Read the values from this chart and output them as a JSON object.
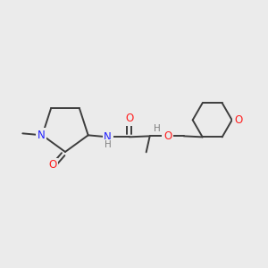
{
  "bg_color": "#ebebeb",
  "bond_color": "#3d3d3d",
  "atom_colors": {
    "N": "#2020ff",
    "O": "#ff2020",
    "H": "#808080"
  },
  "figsize": [
    3.0,
    3.0
  ],
  "dpi": 100,
  "bond_lw": 1.4,
  "font_size": 8.5
}
